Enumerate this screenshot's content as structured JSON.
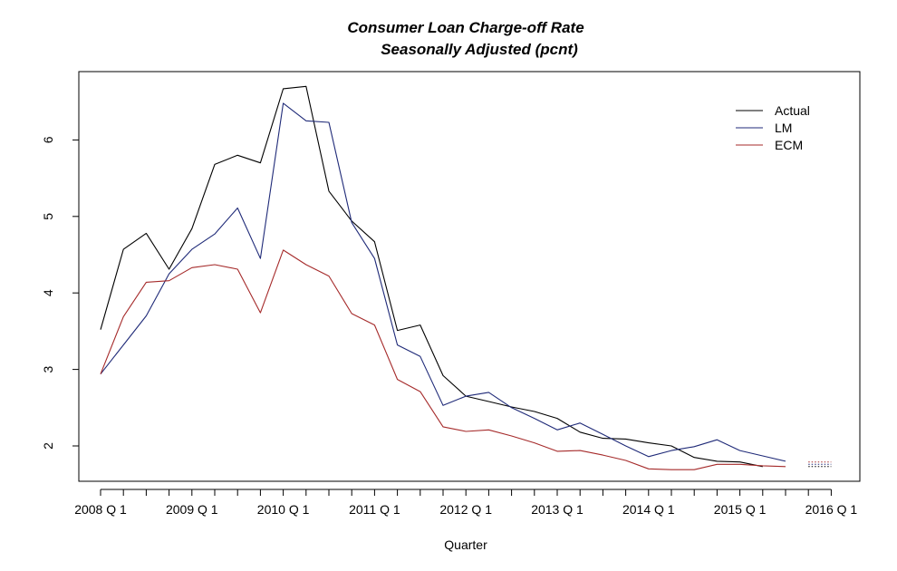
{
  "chart_data": {
    "type": "line",
    "title": "Consumer Loan Charge-off Rate",
    "subtitle": "Seasonally Adjusted (pcnt)",
    "xlabel": "Quarter",
    "ylabel": "",
    "x_tick_labels": [
      "2008 Q 1",
      "2009 Q 1",
      "2010 Q 1",
      "2011 Q 1",
      "2012 Q 1",
      "2013 Q 1",
      "2014 Q 1",
      "2015 Q 1",
      "2016 Q 1"
    ],
    "y_ticks": [
      2,
      3,
      4,
      5,
      6
    ],
    "ylim": [
      1.6,
      6.9
    ],
    "x_start_year": 2008,
    "x_count": 33,
    "legend_position": "top-right",
    "grid": false,
    "series": [
      {
        "name": "Actual",
        "color": "#000000",
        "values": [
          3.52,
          4.57,
          4.78,
          4.31,
          4.84,
          5.68,
          5.8,
          5.7,
          6.67,
          6.7,
          5.33,
          4.94,
          4.67,
          3.51,
          3.58,
          2.92,
          2.65,
          2.58,
          2.51,
          2.45,
          2.36,
          2.18,
          2.1,
          2.09,
          2.04,
          2.0,
          1.85,
          1.8,
          1.79,
          1.73,
          null,
          null,
          null
        ]
      },
      {
        "name": "LM",
        "color": "#1f2a78",
        "values": [
          2.94,
          3.32,
          3.7,
          4.25,
          4.57,
          4.77,
          5.11,
          4.45,
          6.48,
          6.25,
          6.23,
          4.92,
          4.45,
          3.32,
          3.17,
          2.53,
          2.65,
          2.7,
          2.5,
          2.36,
          2.21,
          2.3,
          2.15,
          2.0,
          1.86,
          1.94,
          1.99,
          2.08,
          1.94,
          1.87,
          1.8,
          null,
          null
        ]
      },
      {
        "name": "ECM",
        "color": "#a52a2a",
        "values": [
          2.94,
          3.69,
          4.14,
          4.16,
          4.33,
          4.37,
          4.31,
          3.74,
          4.56,
          4.37,
          4.22,
          3.73,
          3.58,
          2.87,
          2.71,
          2.25,
          2.19,
          2.21,
          2.13,
          2.04,
          1.93,
          1.94,
          1.88,
          1.81,
          1.7,
          1.69,
          1.69,
          1.76,
          1.76,
          1.74,
          1.73,
          null,
          null
        ]
      }
    ],
    "forecast_series": [
      {
        "name": "Actual",
        "color": "#000000",
        "x_index": [
          31,
          32
        ],
        "values": [
          1.73,
          1.73
        ]
      },
      {
        "name": "LM",
        "color": "#1f2a78",
        "x_index": [
          31,
          32
        ],
        "values": [
          1.76,
          1.76
        ]
      },
      {
        "name": "ECM",
        "color": "#a52a2a",
        "x_index": [
          31,
          32
        ],
        "values": [
          1.79,
          1.79
        ]
      }
    ]
  }
}
